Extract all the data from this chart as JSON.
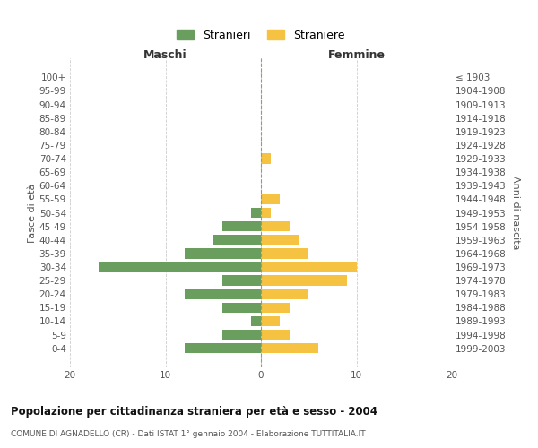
{
  "age_groups": [
    "100+",
    "95-99",
    "90-94",
    "85-89",
    "80-84",
    "75-79",
    "70-74",
    "65-69",
    "60-64",
    "55-59",
    "50-54",
    "45-49",
    "40-44",
    "35-39",
    "30-34",
    "25-29",
    "20-24",
    "15-19",
    "10-14",
    "5-9",
    "0-4"
  ],
  "birth_years": [
    "≤ 1903",
    "1904-1908",
    "1909-1913",
    "1914-1918",
    "1919-1923",
    "1924-1928",
    "1929-1933",
    "1934-1938",
    "1939-1943",
    "1944-1948",
    "1949-1953",
    "1954-1958",
    "1959-1963",
    "1964-1968",
    "1969-1973",
    "1974-1978",
    "1979-1983",
    "1984-1988",
    "1989-1993",
    "1994-1998",
    "1999-2003"
  ],
  "maschi": [
    0,
    0,
    0,
    0,
    0,
    0,
    0,
    0,
    0,
    0,
    1,
    4,
    5,
    8,
    17,
    4,
    8,
    4,
    1,
    4,
    8
  ],
  "femmine": [
    0,
    0,
    0,
    0,
    0,
    0,
    1,
    0,
    0,
    2,
    1,
    3,
    4,
    5,
    10,
    9,
    5,
    3,
    2,
    3,
    6
  ],
  "color_maschi": "#6a9e5e",
  "color_femmine": "#f5c242",
  "title": "Popolazione per cittadinanza straniera per età e sesso - 2004",
  "subtitle": "COMUNE DI AGNADELLO (CR) - Dati ISTAT 1° gennaio 2004 - Elaborazione TUTTITALIA.IT",
  "ylabel_left": "Fasce di età",
  "ylabel_right": "Anni di nascita",
  "xlabel_left": "Maschi",
  "xlabel_right": "Femmine",
  "legend_stranieri": "Stranieri",
  "legend_straniere": "Straniere",
  "xlim": 20,
  "background_color": "#ffffff",
  "grid_color": "#cccccc"
}
